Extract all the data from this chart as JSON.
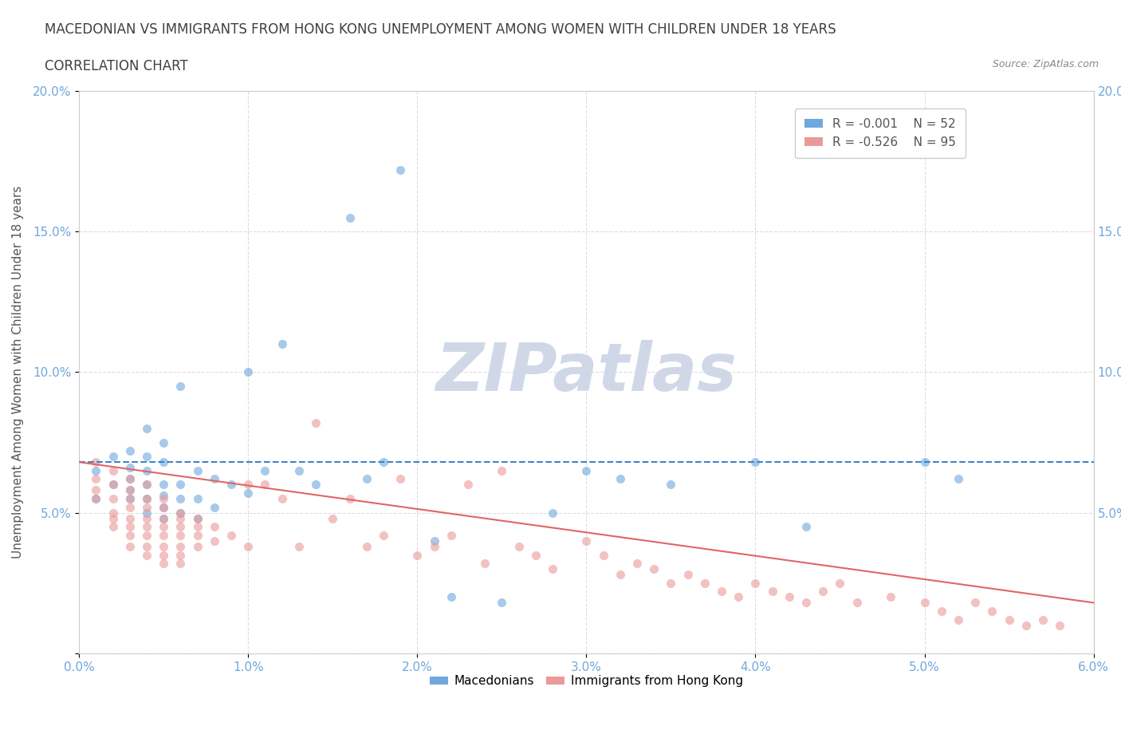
{
  "title_line1": "MACEDONIAN VS IMMIGRANTS FROM HONG KONG UNEMPLOYMENT AMONG WOMEN WITH CHILDREN UNDER 18 YEARS",
  "title_line2": "CORRELATION CHART",
  "source": "Source: ZipAtlas.com",
  "xlabel": "",
  "ylabel": "Unemployment Among Women with Children Under 18 years",
  "xlim": [
    0.0,
    0.06
  ],
  "ylim": [
    0.0,
    0.2
  ],
  "xticks": [
    0.0,
    0.01,
    0.02,
    0.03,
    0.04,
    0.05,
    0.06
  ],
  "xticklabels": [
    "0.0%",
    "1.0%",
    "2.0%",
    "3.0%",
    "4.0%",
    "5.0%",
    "6.0%"
  ],
  "yticks": [
    0.0,
    0.05,
    0.1,
    0.15,
    0.2
  ],
  "yticklabels": [
    "",
    "5.0%",
    "10.0%",
    "15.0%",
    "20.0%"
  ],
  "legend_r1": "R = -0.001",
  "legend_n1": "N = 52",
  "legend_r2": "R = -0.526",
  "legend_n2": "N = 95",
  "color_blue": "#6fa8dc",
  "color_pink": "#ea9999",
  "watermark": "ZIPatlas",
  "watermark_color": "#d0d8e8",
  "blue_scatter_x": [
    0.001,
    0.001,
    0.002,
    0.002,
    0.003,
    0.003,
    0.003,
    0.003,
    0.003,
    0.004,
    0.004,
    0.004,
    0.004,
    0.004,
    0.004,
    0.005,
    0.005,
    0.005,
    0.005,
    0.005,
    0.005,
    0.006,
    0.006,
    0.006,
    0.006,
    0.007,
    0.007,
    0.007,
    0.008,
    0.008,
    0.009,
    0.01,
    0.01,
    0.011,
    0.012,
    0.013,
    0.014,
    0.016,
    0.017,
    0.018,
    0.019,
    0.021,
    0.022,
    0.025,
    0.028,
    0.03,
    0.032,
    0.035,
    0.04,
    0.043,
    0.05,
    0.052
  ],
  "blue_scatter_y": [
    0.065,
    0.055,
    0.06,
    0.07,
    0.055,
    0.058,
    0.062,
    0.066,
    0.072,
    0.05,
    0.055,
    0.06,
    0.065,
    0.07,
    0.08,
    0.048,
    0.052,
    0.056,
    0.06,
    0.068,
    0.075,
    0.05,
    0.055,
    0.06,
    0.095,
    0.048,
    0.055,
    0.065,
    0.052,
    0.062,
    0.06,
    0.057,
    0.1,
    0.065,
    0.11,
    0.065,
    0.06,
    0.155,
    0.062,
    0.068,
    0.172,
    0.04,
    0.02,
    0.018,
    0.05,
    0.065,
    0.062,
    0.06,
    0.068,
    0.045,
    0.068,
    0.062
  ],
  "pink_scatter_x": [
    0.001,
    0.001,
    0.001,
    0.001,
    0.002,
    0.002,
    0.002,
    0.002,
    0.002,
    0.002,
    0.003,
    0.003,
    0.003,
    0.003,
    0.003,
    0.003,
    0.003,
    0.003,
    0.004,
    0.004,
    0.004,
    0.004,
    0.004,
    0.004,
    0.004,
    0.004,
    0.005,
    0.005,
    0.005,
    0.005,
    0.005,
    0.005,
    0.005,
    0.005,
    0.006,
    0.006,
    0.006,
    0.006,
    0.006,
    0.006,
    0.006,
    0.007,
    0.007,
    0.007,
    0.007,
    0.008,
    0.008,
    0.009,
    0.01,
    0.01,
    0.011,
    0.012,
    0.013,
    0.014,
    0.015,
    0.016,
    0.017,
    0.018,
    0.019,
    0.02,
    0.021,
    0.022,
    0.023,
    0.024,
    0.025,
    0.026,
    0.027,
    0.028,
    0.03,
    0.031,
    0.032,
    0.033,
    0.034,
    0.035,
    0.036,
    0.037,
    0.038,
    0.039,
    0.04,
    0.041,
    0.042,
    0.043,
    0.044,
    0.045,
    0.046,
    0.048,
    0.05,
    0.051,
    0.052,
    0.053,
    0.054,
    0.055,
    0.056,
    0.057,
    0.058
  ],
  "pink_scatter_y": [
    0.068,
    0.062,
    0.058,
    0.055,
    0.065,
    0.06,
    0.055,
    0.05,
    0.048,
    0.045,
    0.062,
    0.058,
    0.055,
    0.052,
    0.048,
    0.045,
    0.042,
    0.038,
    0.06,
    0.055,
    0.052,
    0.048,
    0.045,
    0.042,
    0.038,
    0.035,
    0.055,
    0.052,
    0.048,
    0.045,
    0.042,
    0.038,
    0.035,
    0.032,
    0.05,
    0.048,
    0.045,
    0.042,
    0.038,
    0.035,
    0.032,
    0.048,
    0.045,
    0.042,
    0.038,
    0.045,
    0.04,
    0.042,
    0.038,
    0.06,
    0.06,
    0.055,
    0.038,
    0.082,
    0.048,
    0.055,
    0.038,
    0.042,
    0.062,
    0.035,
    0.038,
    0.042,
    0.06,
    0.032,
    0.065,
    0.038,
    0.035,
    0.03,
    0.04,
    0.035,
    0.028,
    0.032,
    0.03,
    0.025,
    0.028,
    0.025,
    0.022,
    0.02,
    0.025,
    0.022,
    0.02,
    0.018,
    0.022,
    0.025,
    0.018,
    0.02,
    0.018,
    0.015,
    0.012,
    0.018,
    0.015,
    0.012,
    0.01,
    0.012,
    0.01
  ],
  "blue_trend_x": [
    0.0,
    0.06
  ],
  "blue_trend_y": [
    0.068,
    0.068
  ],
  "pink_trend_x": [
    0.0,
    0.06
  ],
  "pink_trend_y": [
    0.068,
    0.018
  ],
  "background_color": "#ffffff",
  "grid_color": "#dddddd",
  "tick_color": "#6fa8dc",
  "title_color": "#404040",
  "marker_size": 8,
  "alpha": 0.6
}
